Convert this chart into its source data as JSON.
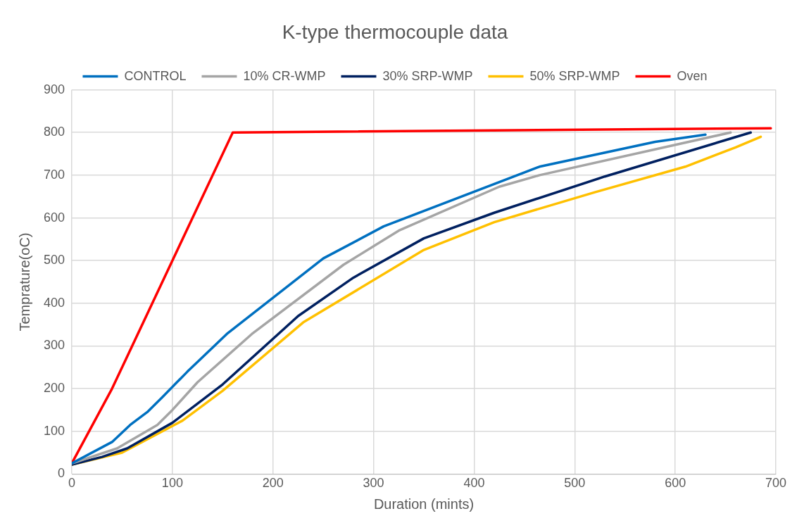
{
  "chart_data": {
    "type": "line",
    "title": "K-type thermocouple data",
    "xlabel": "Duration (mints)",
    "ylabel": "Temprature(oC)",
    "xlim": [
      0,
      700
    ],
    "xticks": [
      0,
      100,
      200,
      300,
      400,
      500,
      600,
      700
    ],
    "ylim": [
      0,
      900
    ],
    "yticks": [
      0,
      100,
      200,
      300,
      400,
      500,
      600,
      700,
      800,
      900
    ],
    "grid": true,
    "legend": "top",
    "marker": "none",
    "line_style": "solid",
    "series": [
      {
        "name": "CONTROL",
        "color": "#0070c0",
        "x": [
          0,
          40,
          58,
          75,
          90,
          115,
          155,
          250,
          310,
          465,
          580,
          630
        ],
        "values": [
          25,
          75,
          115,
          145,
          180,
          240,
          330,
          505,
          580,
          720,
          778,
          795
        ]
      },
      {
        "name": "10% CR-WMP",
        "color": "#a5a5a5",
        "x": [
          0,
          45,
          85,
          100,
          125,
          180,
          270,
          325,
          425,
          465,
          655
        ],
        "values": [
          25,
          60,
          115,
          150,
          215,
          330,
          490,
          570,
          673,
          700,
          800
        ]
      },
      {
        "name": "30% SRP-WMP",
        "color": "#002060",
        "x": [
          0,
          30,
          55,
          100,
          125,
          150,
          225,
          280,
          350,
          420,
          530,
          675
        ],
        "values": [
          22,
          40,
          60,
          120,
          165,
          210,
          370,
          460,
          552,
          612,
          697,
          800
        ]
      },
      {
        "name": "50% SRP-WMP",
        "color": "#ffc000",
        "x": [
          0,
          50,
          90,
          110,
          150,
          230,
          350,
          420,
          520,
          610,
          660,
          685
        ],
        "values": [
          22,
          50,
          100,
          125,
          195,
          355,
          525,
          590,
          660,
          720,
          765,
          790
        ]
      },
      {
        "name": "Oven",
        "color": "#ff0000",
        "x": [
          0,
          40,
          160,
          695
        ],
        "values": [
          25,
          200,
          800,
          810
        ]
      }
    ]
  }
}
